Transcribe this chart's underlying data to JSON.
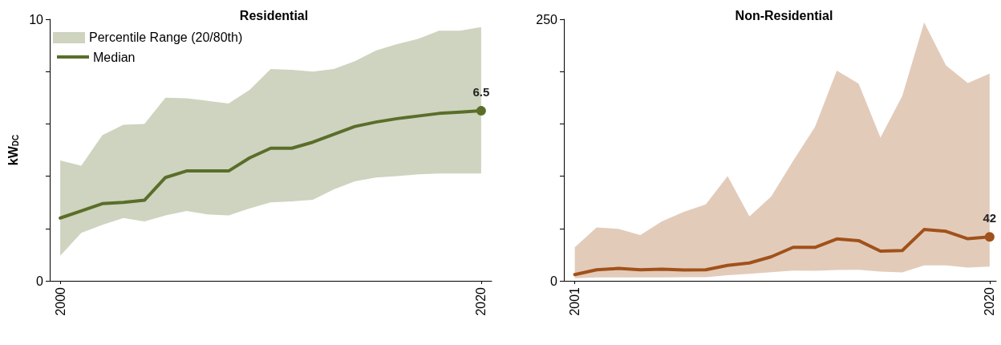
{
  "chart_data": [
    {
      "type": "line",
      "title": "Residential",
      "ylabel": "kW$_{DC}$",
      "x": [
        2000,
        2001,
        2002,
        2003,
        2004,
        2005,
        2006,
        2007,
        2008,
        2009,
        2010,
        2011,
        2012,
        2013,
        2014,
        2015,
        2016,
        2017,
        2018,
        2019,
        2020
      ],
      "xlim": [
        1999.5,
        2020.5
      ],
      "xticks": [
        2000,
        2020
      ],
      "ylim": [
        0,
        10
      ],
      "yticks": [
        0,
        {
          "value": 2,
          "label": null
        },
        {
          "value": 4,
          "label": null
        },
        {
          "value": 6,
          "label": null
        },
        {
          "value": 8,
          "label": null
        },
        10
      ],
      "series": [
        {
          "name": "Median",
          "color": "#5a6e2a",
          "values": [
            2.4,
            2.67,
            2.95,
            3.0,
            3.08,
            3.95,
            4.2,
            4.2,
            4.2,
            4.7,
            5.07,
            5.07,
            5.3,
            5.6,
            5.9,
            6.07,
            6.2,
            6.3,
            6.4,
            6.45,
            6.5
          ],
          "lower": [
            0.96,
            1.83,
            2.14,
            2.4,
            2.27,
            2.5,
            2.67,
            2.54,
            2.5,
            2.77,
            3.0,
            3.04,
            3.1,
            3.5,
            3.8,
            3.95,
            4.0,
            4.07,
            4.1,
            4.1,
            4.1
          ],
          "upper": [
            4.6,
            4.4,
            5.57,
            5.97,
            6.0,
            7.0,
            6.98,
            6.88,
            6.78,
            7.3,
            8.1,
            8.07,
            8.0,
            8.1,
            8.4,
            8.8,
            9.05,
            9.25,
            9.56,
            9.56,
            9.7
          ],
          "value_labels": [
            null,
            null,
            null,
            null,
            null,
            null,
            null,
            null,
            null,
            null,
            null,
            null,
            null,
            null,
            null,
            null,
            null,
            null,
            null,
            null,
            "6.5"
          ]
        }
      ],
      "annotations": [
        "Percentile Range (20/80th)"
      ],
      "legend": "top left",
      "grid": false,
      "marker": "none",
      "line_style": "solid"
    },
    {
      "type": "line",
      "title": "Non-Residential",
      "x": [
        2001,
        2002,
        2003,
        2004,
        2005,
        2006,
        2007,
        2008,
        2009,
        2010,
        2011,
        2012,
        2013,
        2014,
        2015,
        2016,
        2017,
        2018,
        2019,
        2020
      ],
      "xlim": [
        2000.5,
        2020.3
      ],
      "xticks": [
        2001,
        2020
      ],
      "ylim": [
        0,
        250
      ],
      "yticks": [
        0,
        {
          "value": 50,
          "label": null
        },
        {
          "value": 100,
          "label": null
        },
        {
          "value": 150,
          "label": null
        },
        {
          "value": 200,
          "label": null
        },
        250
      ],
      "series": [
        {
          "color": "#a0521a",
          "values": [
            6,
            10.6,
            11.8,
            10.6,
            11.2,
            10.3,
            10.6,
            14.8,
            17.1,
            23,
            32,
            32,
            40,
            38.4,
            28.4,
            29,
            49,
            47.3,
            40.2,
            42
          ],
          "lower": [
            2.4,
            3.3,
            3.3,
            3.3,
            3.3,
            3.5,
            3.5,
            5.3,
            6.8,
            8.3,
            9.8,
            9.5,
            10.3,
            10.6,
            8.9,
            8,
            14.8,
            14.8,
            12.7,
            13.6
          ],
          "upper": [
            32,
            51,
            49.6,
            43.7,
            57,
            66,
            73,
            100,
            61.5,
            80.7,
            114.7,
            147,
            201,
            188.5,
            136.8,
            176.7,
            247,
            206,
            189,
            198
          ],
          "value_labels": [
            null,
            null,
            null,
            null,
            null,
            null,
            null,
            null,
            null,
            null,
            null,
            null,
            null,
            null,
            null,
            null,
            null,
            null,
            null,
            "42"
          ]
        }
      ],
      "legend": false,
      "grid": false,
      "marker": "none",
      "line_style": "solid"
    }
  ]
}
